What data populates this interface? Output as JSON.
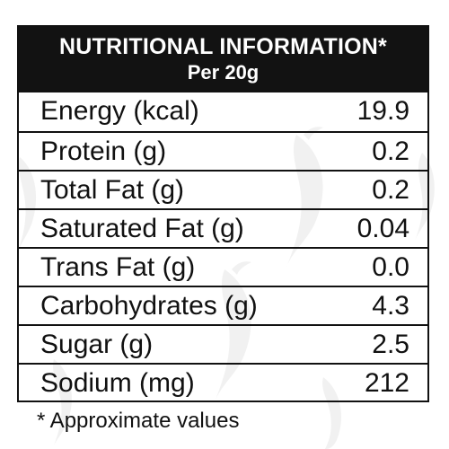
{
  "header": {
    "title": "NUTRITIONAL INFORMATION*",
    "subtitle": "Per 20g"
  },
  "rows": [
    {
      "label": "Energy (kcal)",
      "value": "19.9"
    },
    {
      "label": "Protein (g)",
      "value": "0.2"
    },
    {
      "label": "Total Fat (g)",
      "value": "0.2"
    },
    {
      "label": "Saturated Fat (g)",
      "value": "0.04"
    },
    {
      "label": "Trans Fat (g)",
      "value": "0.0"
    },
    {
      "label": "Carbohydrates (g)",
      "value": "4.3"
    },
    {
      "label": "Sugar (g)",
      "value": "2.5"
    },
    {
      "label": "Sodium (mg)",
      "value": "212"
    }
  ],
  "footnote": "* Approximate values",
  "colors": {
    "header_background": "#121212",
    "header_text": "#ffffff",
    "border": "#111111",
    "watermark": "#f1f1f1"
  },
  "icons": [
    "chili-pepper-watermark-icon"
  ]
}
